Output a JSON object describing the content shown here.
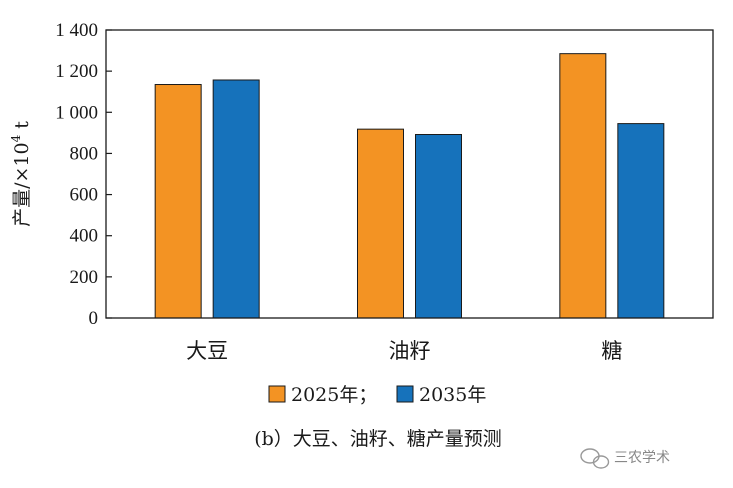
{
  "chart_data": {
    "type": "bar",
    "title": "",
    "ylabel_main": "产量/×10",
    "ylabel_sup": "4",
    "ylabel_unit": " t",
    "xlabel": "",
    "ylim": [
      0,
      1400
    ],
    "yticks": [
      0,
      200,
      400,
      600,
      800,
      1000,
      1200,
      1400
    ],
    "ytick_labels": [
      "0",
      "200",
      "400",
      "600",
      "800",
      "1 000",
      "1 200",
      "1 400"
    ],
    "categories": [
      "大豆",
      "油籽",
      "糖"
    ],
    "series": [
      {
        "name": "2025年；",
        "color": "#F39323",
        "values": [
          1135,
          918,
          1285
        ]
      },
      {
        "name": "2035年",
        "color": "#1672BB",
        "values": [
          1157,
          892,
          945
        ]
      }
    ],
    "legend_position": "bottom",
    "grid": false
  },
  "caption": "(b）大豆、油籽、糖产量预测",
  "watermark": "三农学术"
}
